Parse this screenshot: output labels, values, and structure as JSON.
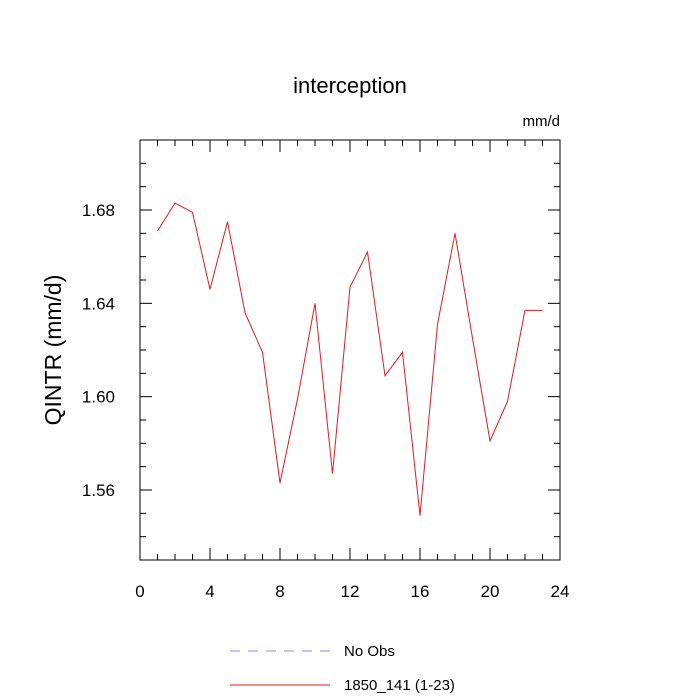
{
  "chart_data": {
    "type": "line",
    "title": "interception",
    "units_label": "mm/d",
    "xlabel": "",
    "ylabel": "QINTR  (mm/d)",
    "xlim": [
      0,
      24
    ],
    "ylim": [
      1.53,
      1.71
    ],
    "x_ticks": [
      0,
      4,
      8,
      12,
      16,
      20,
      24
    ],
    "x_tick_labels": [
      "0",
      "4",
      "8",
      "12",
      "16",
      "20",
      "24"
    ],
    "y_ticks": [
      1.56,
      1.6,
      1.64,
      1.68
    ],
    "y_tick_labels": [
      "1.56",
      "1.60",
      "1.64",
      "1.68"
    ],
    "grid": false,
    "legend_position": "bottom",
    "series": [
      {
        "name": "No Obs",
        "color": "#8a8adb",
        "dash": true,
        "x": [],
        "values": []
      },
      {
        "name": "1850_141 (1-23)",
        "color": "#e41a1c",
        "dash": false,
        "x": [
          1,
          2,
          3,
          4,
          5,
          6,
          7,
          8,
          9,
          10,
          11,
          12,
          13,
          14,
          15,
          16,
          17,
          18,
          19,
          20,
          21,
          22,
          23
        ],
        "values": [
          1.671,
          1.683,
          1.679,
          1.646,
          1.675,
          1.636,
          1.619,
          1.563,
          1.599,
          1.64,
          1.567,
          1.647,
          1.662,
          1.609,
          1.619,
          1.549,
          1.631,
          1.67,
          1.625,
          1.581,
          1.598,
          1.637,
          1.637
        ]
      }
    ]
  }
}
